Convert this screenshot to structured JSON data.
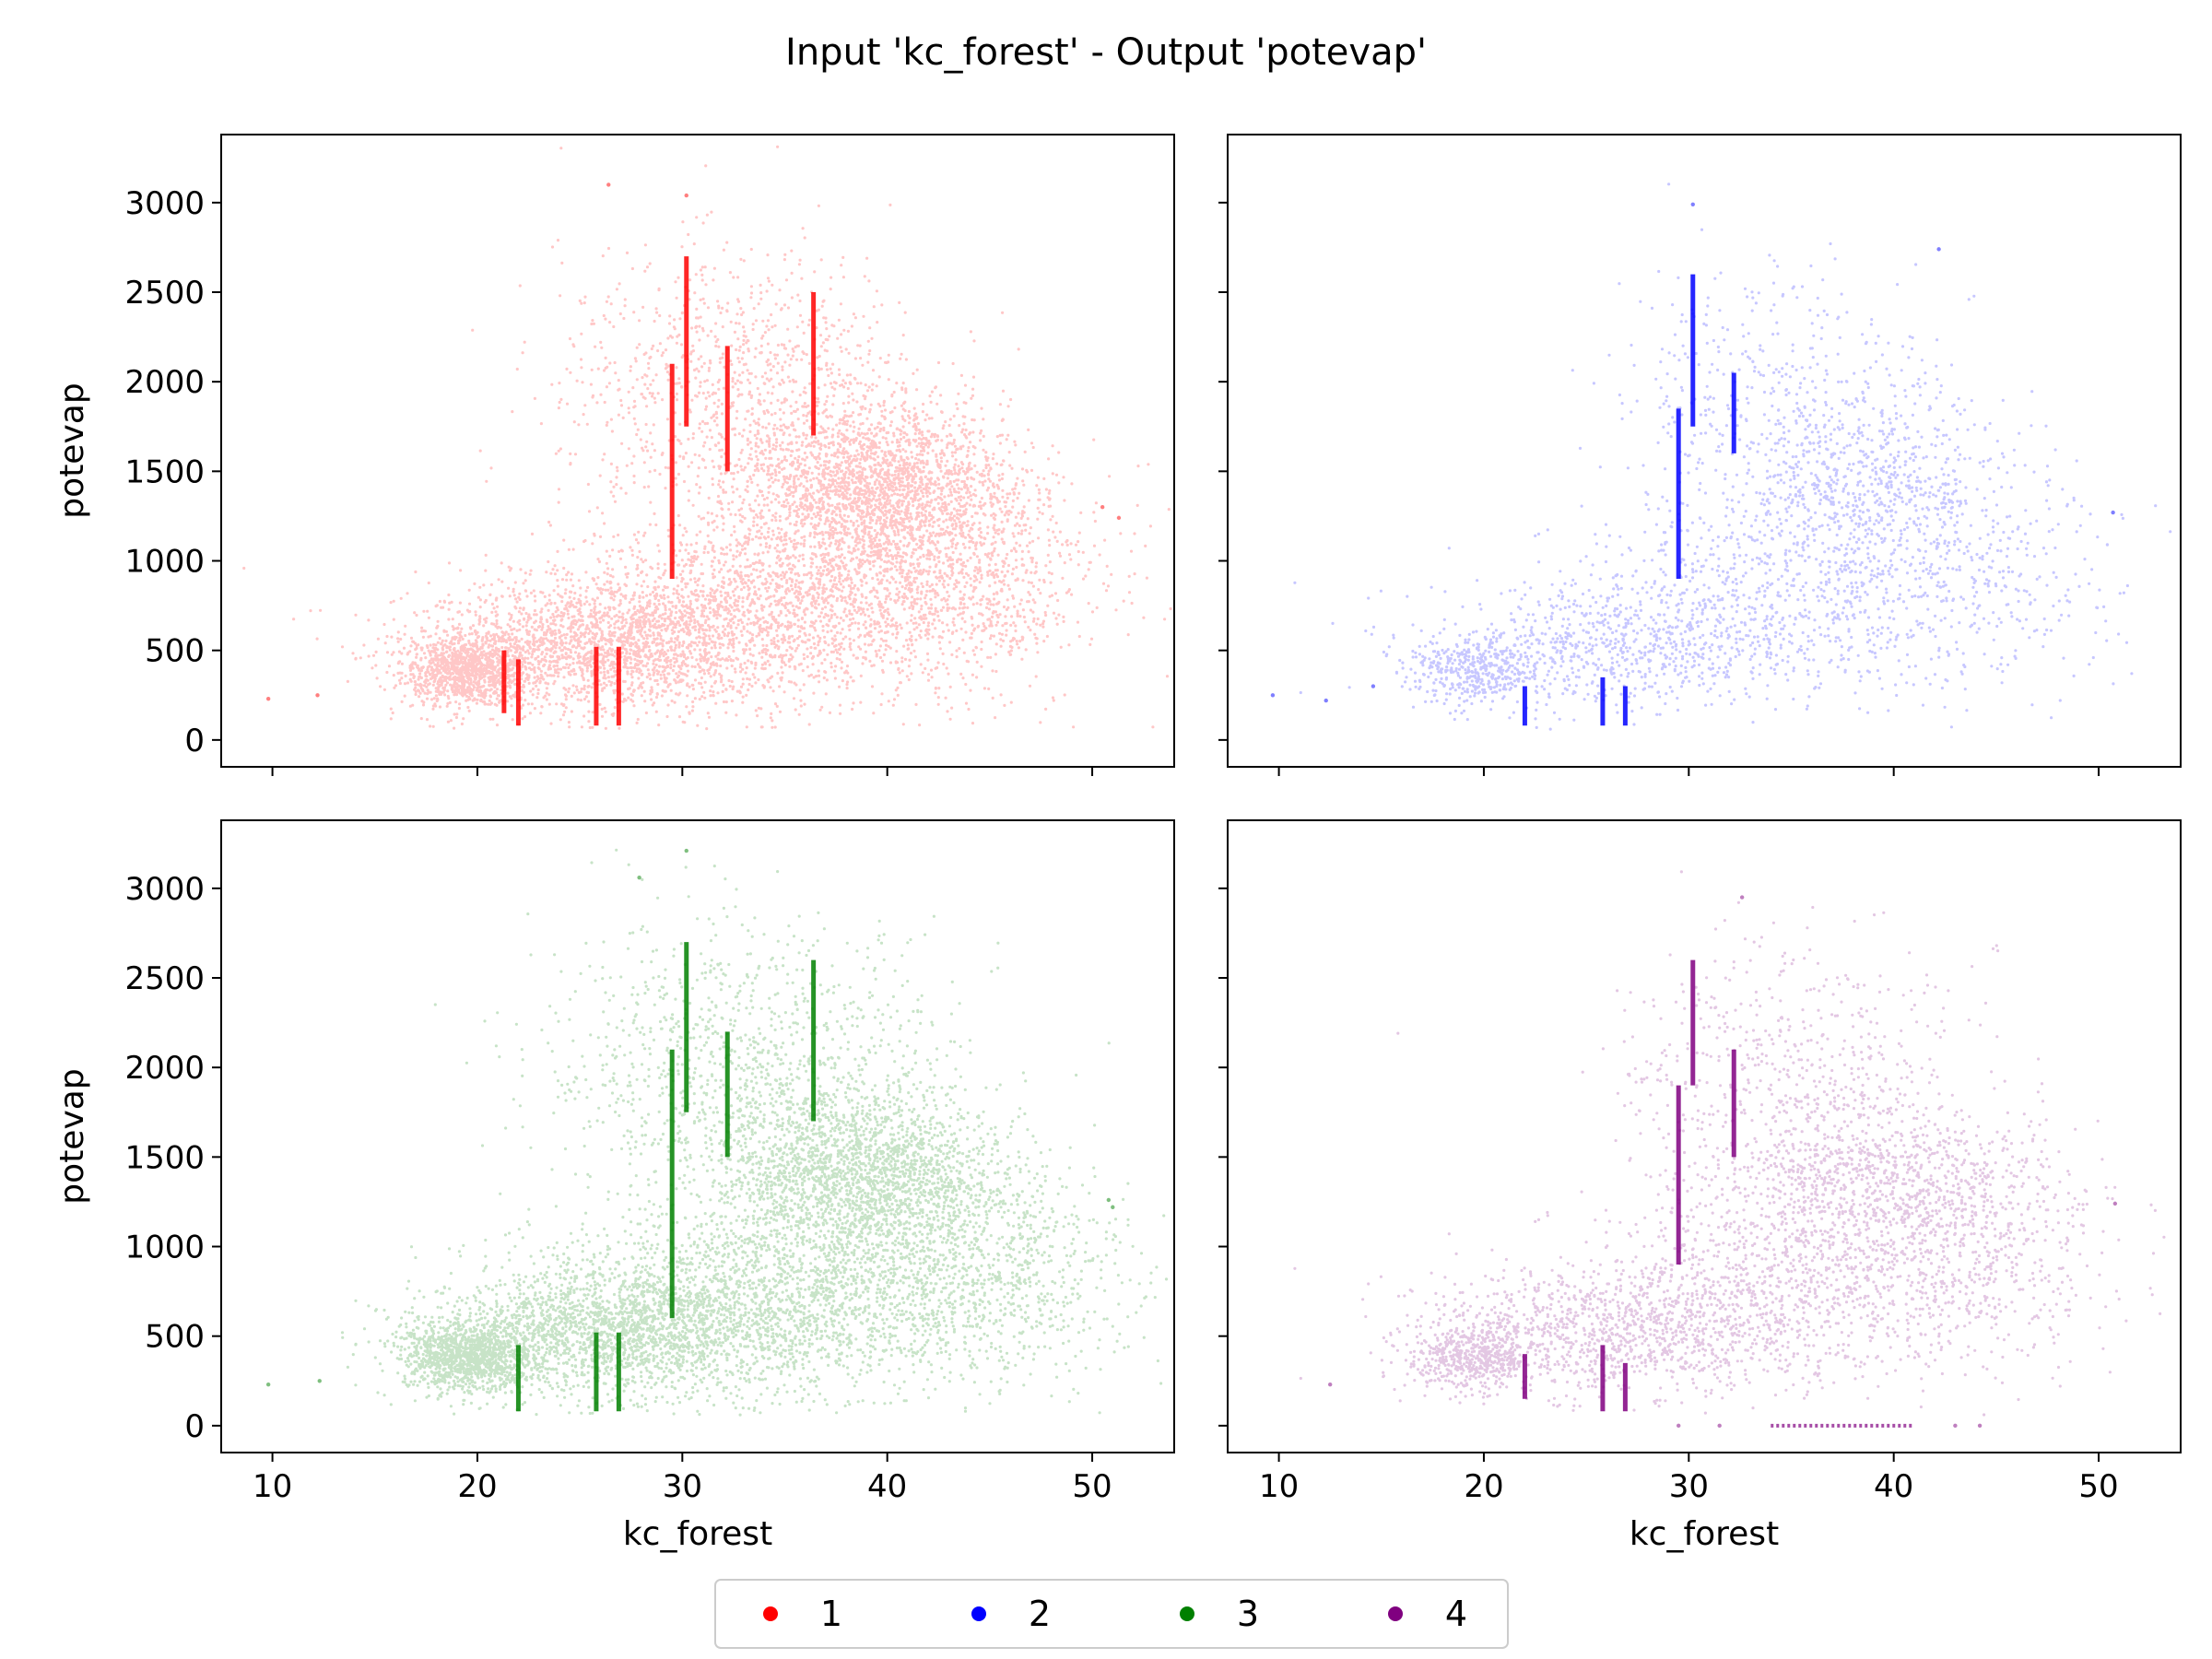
{
  "figure": {
    "title": "Input 'kc_forest' - Output 'potevap'"
  },
  "legend": {
    "placement": "bottom-center",
    "entries": [
      {
        "label": "1",
        "color": "#ff0000"
      },
      {
        "label": "2",
        "color": "#0000ff"
      },
      {
        "label": "3",
        "color": "#008000"
      },
      {
        "label": "4",
        "color": "#800080"
      }
    ]
  },
  "chart_data": [
    {
      "type": "scatter",
      "panel": "top-left",
      "series_label": "1",
      "color": "#ff0000",
      "xlabel": "",
      "ylabel": "potevap",
      "xlim": [
        7.5,
        54
      ],
      "ylim": [
        -150,
        3380
      ],
      "xticks": [
        10,
        20,
        30,
        40,
        50
      ],
      "yticks": [
        0,
        500,
        1000,
        1500,
        2000,
        2500,
        3000
      ],
      "show_xticklabels": false,
      "show_yticklabels": true,
      "density": 9000,
      "clusters": [
        {
          "x": 19.5,
          "y": 380,
          "sx": 1.6,
          "sy": 90,
          "w": 0.12
        },
        {
          "x": 26,
          "y": 520,
          "sx": 4.5,
          "sy": 170,
          "w": 0.22
        },
        {
          "x": 35,
          "y": 760,
          "sx": 5.5,
          "sy": 260,
          "w": 0.22
        },
        {
          "x": 39.5,
          "y": 1400,
          "sx": 3.2,
          "sy": 230,
          "w": 0.24
        },
        {
          "x": 33,
          "y": 1950,
          "sx": 4.5,
          "sy": 380,
          "w": 0.12
        },
        {
          "x": 44,
          "y": 900,
          "sx": 3.5,
          "sy": 300,
          "w": 0.08
        }
      ],
      "vertical_streaks": [
        {
          "x": 25.8,
          "y0": 80,
          "y1": 520
        },
        {
          "x": 26.9,
          "y0": 80,
          "y1": 520
        },
        {
          "x": 22.0,
          "y0": 80,
          "y1": 450
        },
        {
          "x": 21.3,
          "y0": 150,
          "y1": 500
        },
        {
          "x": 29.5,
          "y0": 900,
          "y1": 2100
        },
        {
          "x": 30.2,
          "y0": 1750,
          "y1": 2700
        },
        {
          "x": 32.2,
          "y0": 1500,
          "y1": 2200
        },
        {
          "x": 36.4,
          "y0": 1700,
          "y1": 2500
        }
      ],
      "isolated_points": [
        {
          "x": 9.8,
          "y": 230
        },
        {
          "x": 12.2,
          "y": 250
        },
        {
          "x": 51.3,
          "y": 1240
        },
        {
          "x": 50.5,
          "y": 1300
        },
        {
          "x": 26.4,
          "y": 3100
        },
        {
          "x": 30.2,
          "y": 3040
        }
      ]
    },
    {
      "type": "scatter",
      "panel": "top-right",
      "series_label": "2",
      "color": "#0000ff",
      "xlabel": "",
      "ylabel": "",
      "xlim": [
        7.5,
        54
      ],
      "ylim": [
        -150,
        3380
      ],
      "xticks": [
        10,
        20,
        30,
        40,
        50
      ],
      "yticks": [
        0,
        500,
        1000,
        1500,
        2000,
        2500,
        3000
      ],
      "show_xticklabels": false,
      "show_yticklabels": false,
      "density": 3200,
      "clusters": [
        {
          "x": 19.5,
          "y": 380,
          "sx": 1.6,
          "sy": 90,
          "w": 0.12
        },
        {
          "x": 26,
          "y": 520,
          "sx": 4.5,
          "sy": 170,
          "w": 0.22
        },
        {
          "x": 35,
          "y": 760,
          "sx": 5.5,
          "sy": 260,
          "w": 0.22
        },
        {
          "x": 38.5,
          "y": 1400,
          "sx": 3.5,
          "sy": 260,
          "w": 0.24
        },
        {
          "x": 34,
          "y": 1950,
          "sx": 4.0,
          "sy": 380,
          "w": 0.12
        },
        {
          "x": 44,
          "y": 900,
          "sx": 3.5,
          "sy": 300,
          "w": 0.08
        }
      ],
      "vertical_streaks": [
        {
          "x": 25.8,
          "y0": 80,
          "y1": 350
        },
        {
          "x": 26.9,
          "y0": 80,
          "y1": 300
        },
        {
          "x": 22.0,
          "y0": 80,
          "y1": 300
        },
        {
          "x": 29.5,
          "y0": 900,
          "y1": 1850
        },
        {
          "x": 30.2,
          "y0": 1750,
          "y1": 2600
        },
        {
          "x": 32.2,
          "y0": 1600,
          "y1": 2050
        }
      ],
      "isolated_points": [
        {
          "x": 9.7,
          "y": 250
        },
        {
          "x": 12.3,
          "y": 220
        },
        {
          "x": 14.6,
          "y": 300
        },
        {
          "x": 50.7,
          "y": 1270
        },
        {
          "x": 30.2,
          "y": 2990
        },
        {
          "x": 42.2,
          "y": 2740
        }
      ]
    },
    {
      "type": "scatter",
      "panel": "bottom-left",
      "series_label": "3",
      "color": "#008000",
      "xlabel": "kc_forest",
      "ylabel": "potevap",
      "xlim": [
        7.5,
        54
      ],
      "ylim": [
        -150,
        3380
      ],
      "xticks": [
        10,
        20,
        30,
        40,
        50
      ],
      "yticks": [
        0,
        500,
        1000,
        1500,
        2000,
        2500,
        3000
      ],
      "show_xticklabels": true,
      "show_yticklabels": true,
      "density": 9000,
      "clusters": [
        {
          "x": 19.5,
          "y": 380,
          "sx": 1.6,
          "sy": 90,
          "w": 0.12
        },
        {
          "x": 26,
          "y": 520,
          "sx": 4.5,
          "sy": 170,
          "w": 0.22
        },
        {
          "x": 35,
          "y": 700,
          "sx": 6.0,
          "sy": 250,
          "w": 0.22
        },
        {
          "x": 38.5,
          "y": 1400,
          "sx": 3.5,
          "sy": 250,
          "w": 0.24
        },
        {
          "x": 33,
          "y": 2000,
          "sx": 5.0,
          "sy": 400,
          "w": 0.12
        },
        {
          "x": 45,
          "y": 900,
          "sx": 3.5,
          "sy": 320,
          "w": 0.08
        }
      ],
      "vertical_streaks": [
        {
          "x": 25.8,
          "y0": 80,
          "y1": 520
        },
        {
          "x": 26.9,
          "y0": 80,
          "y1": 520
        },
        {
          "x": 22.0,
          "y0": 80,
          "y1": 450
        },
        {
          "x": 29.5,
          "y0": 600,
          "y1": 2100
        },
        {
          "x": 30.2,
          "y0": 1750,
          "y1": 2700
        },
        {
          "x": 32.2,
          "y0": 1500,
          "y1": 2200
        },
        {
          "x": 36.4,
          "y0": 1700,
          "y1": 2600
        }
      ],
      "isolated_points": [
        {
          "x": 9.8,
          "y": 230
        },
        {
          "x": 12.3,
          "y": 250
        },
        {
          "x": 50.8,
          "y": 1260
        },
        {
          "x": 51.0,
          "y": 1220
        },
        {
          "x": 30.2,
          "y": 3210
        },
        {
          "x": 27.9,
          "y": 3060
        }
      ]
    },
    {
      "type": "scatter",
      "panel": "bottom-right",
      "series_label": "4",
      "color": "#800080",
      "xlabel": "kc_forest",
      "ylabel": "",
      "xlim": [
        7.5,
        54
      ],
      "ylim": [
        -150,
        3380
      ],
      "xticks": [
        10,
        20,
        30,
        40,
        50
      ],
      "yticks": [
        0,
        500,
        1000,
        1500,
        2000,
        2500,
        3000
      ],
      "show_xticklabels": true,
      "show_yticklabels": false,
      "density": 4500,
      "clusters": [
        {
          "x": 19.5,
          "y": 380,
          "sx": 1.6,
          "sy": 90,
          "w": 0.12
        },
        {
          "x": 26,
          "y": 520,
          "sx": 4.5,
          "sy": 170,
          "w": 0.22
        },
        {
          "x": 35,
          "y": 760,
          "sx": 5.5,
          "sy": 260,
          "w": 0.22
        },
        {
          "x": 39.5,
          "y": 1350,
          "sx": 4.0,
          "sy": 230,
          "w": 0.22
        },
        {
          "x": 35,
          "y": 1900,
          "sx": 4.0,
          "sy": 380,
          "w": 0.14
        },
        {
          "x": 44,
          "y": 900,
          "sx": 3.5,
          "sy": 300,
          "w": 0.08
        }
      ],
      "vertical_streaks": [
        {
          "x": 25.8,
          "y0": 80,
          "y1": 450
        },
        {
          "x": 26.9,
          "y0": 80,
          "y1": 350
        },
        {
          "x": 22.0,
          "y0": 150,
          "y1": 400
        },
        {
          "x": 29.5,
          "y0": 900,
          "y1": 1900
        },
        {
          "x": 30.2,
          "y0": 1900,
          "y1": 2600
        },
        {
          "x": 32.2,
          "y0": 1500,
          "y1": 2100
        }
      ],
      "horizontal_streaks": [
        {
          "y": 0,
          "x0": 34,
          "x1": 41
        }
      ],
      "isolated_points": [
        {
          "x": 12.5,
          "y": 230
        },
        {
          "x": 29.5,
          "y": 0
        },
        {
          "x": 31.5,
          "y": 0
        },
        {
          "x": 43.0,
          "y": 0
        },
        {
          "x": 44.2,
          "y": 0
        },
        {
          "x": 50.8,
          "y": 1240
        },
        {
          "x": 32.6,
          "y": 2950
        }
      ]
    }
  ]
}
